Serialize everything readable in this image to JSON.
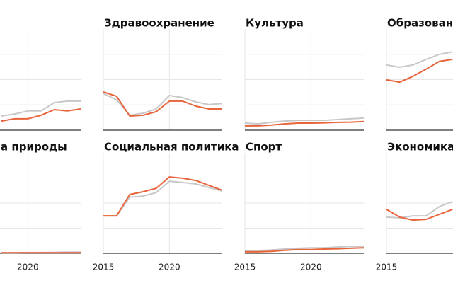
{
  "chart_data": [
    {
      "type": "line",
      "x": [
        2018,
        2019,
        2020,
        2021,
        2022,
        2023,
        2024
      ],
      "xlim": [
        2015,
        2024
      ],
      "xticks": [
        2020
      ],
      "ylim": [
        0,
        4
      ],
      "yticks": [
        1,
        2,
        3
      ],
      "grid": true,
      "series": [
        {
          "color": "#c8c8c8",
          "values": [
            0.56,
            0.64,
            0.76,
            0.76,
            1.09,
            1.15,
            1.15
          ]
        },
        {
          "color": "#e8643a",
          "values": [
            0.36,
            0.45,
            0.45,
            0.59,
            0.81,
            0.76,
            0.84
          ]
        }
      ]
    },
    {
      "type": "line",
      "title": "Здравоохранение",
      "x": [
        2015,
        2016,
        2017,
        2018,
        2019,
        2020,
        2021,
        2022,
        2023,
        2024
      ],
      "xlim": [
        2015,
        2024
      ],
      "xticks": [
        2015,
        2020
      ],
      "ylim": [
        0,
        4
      ],
      "yticks": [
        1,
        2,
        3
      ],
      "grid": true,
      "series": [
        {
          "color": "#c8c8c8",
          "values": [
            1.45,
            1.2,
            0.59,
            0.67,
            0.84,
            1.37,
            1.29,
            1.12,
            1.01,
            1.06
          ]
        },
        {
          "color": "#e8643a",
          "values": [
            1.51,
            1.34,
            0.56,
            0.59,
            0.73,
            1.15,
            1.15,
            0.95,
            0.84,
            0.84
          ]
        }
      ]
    },
    {
      "type": "line",
      "title": "Культура",
      "x": [
        2015,
        2016,
        2017,
        2018,
        2019,
        2020,
        2021,
        2022,
        2023,
        2024
      ],
      "xlim": [
        2015,
        2024
      ],
      "xticks": [
        2015,
        2020
      ],
      "ylim": [
        0,
        4
      ],
      "yticks": [
        1,
        2,
        3
      ],
      "grid": true,
      "series": [
        {
          "color": "#c8c8c8",
          "values": [
            0.28,
            0.25,
            0.31,
            0.36,
            0.39,
            0.39,
            0.39,
            0.42,
            0.45,
            0.48
          ]
        },
        {
          "color": "#e8643a",
          "values": [
            0.17,
            0.17,
            0.2,
            0.25,
            0.28,
            0.28,
            0.29,
            0.31,
            0.32,
            0.34
          ]
        }
      ]
    },
    {
      "type": "line",
      "title": "Образован",
      "x": [
        2015,
        2016,
        2017,
        2018,
        2019,
        2020
      ],
      "xlim": [
        2015,
        2024
      ],
      "xticks": [
        2015
      ],
      "ylim": [
        0,
        4
      ],
      "yticks": [
        1,
        2,
        3
      ],
      "grid": true,
      "series": [
        {
          "color": "#c8c8c8",
          "values": [
            2.58,
            2.49,
            2.58,
            2.8,
            3.0,
            3.1
          ]
        },
        {
          "color": "#e8643a",
          "values": [
            1.99,
            1.9,
            2.13,
            2.41,
            2.72,
            2.8
          ]
        }
      ]
    },
    {
      "type": "line",
      "title": "а природы",
      "x": [
        2018,
        2019,
        2020,
        2021,
        2022,
        2023,
        2024
      ],
      "xlim": [
        2015,
        2024
      ],
      "xticks": [
        2020
      ],
      "ylim": [
        0,
        4
      ],
      "yticks": [
        1,
        2,
        3
      ],
      "grid": true,
      "series": [
        {
          "color": "#c8c8c8",
          "values": [
            0.02,
            0.02,
            0.03,
            0.03,
            0.04,
            0.05,
            0.05
          ]
        },
        {
          "color": "#e8643a",
          "values": [
            0.02,
            0.02,
            0.02,
            0.02,
            0.02,
            0.02,
            0.02
          ]
        }
      ]
    },
    {
      "type": "line",
      "title": "Социальная политика",
      "x": [
        2015,
        2016,
        2017,
        2018,
        2019,
        2020,
        2021,
        2022,
        2023,
        2024
      ],
      "xlim": [
        2015,
        2024
      ],
      "xticks": [
        2015,
        2020
      ],
      "ylim": [
        0,
        4
      ],
      "yticks": [
        1,
        2,
        3
      ],
      "grid": true,
      "series": [
        {
          "color": "#c8c8c8",
          "values": [
            1.49,
            1.49,
            2.23,
            2.28,
            2.42,
            2.87,
            2.82,
            2.76,
            2.62,
            2.48
          ]
        },
        {
          "color": "#e8643a",
          "values": [
            1.49,
            1.49,
            2.34,
            2.45,
            2.59,
            3.04,
            2.99,
            2.9,
            2.7,
            2.51
          ]
        }
      ]
    },
    {
      "type": "line",
      "title": "Спорт",
      "x": [
        2015,
        2016,
        2017,
        2018,
        2019,
        2020,
        2021,
        2022,
        2023,
        2024
      ],
      "xlim": [
        2015,
        2024
      ],
      "xticks": [
        2015,
        2020
      ],
      "ylim": [
        0,
        4
      ],
      "yticks": [
        1,
        2,
        3
      ],
      "grid": true,
      "series": [
        {
          "color": "#c8c8c8",
          "values": [
            0.11,
            0.11,
            0.13,
            0.17,
            0.2,
            0.22,
            0.22,
            0.25,
            0.27,
            0.28
          ]
        },
        {
          "color": "#e8643a",
          "values": [
            0.06,
            0.06,
            0.08,
            0.12,
            0.15,
            0.15,
            0.17,
            0.18,
            0.2,
            0.22
          ]
        }
      ]
    },
    {
      "type": "line",
      "title": "Экономика",
      "x": [
        2015,
        2016,
        2017,
        2018,
        2019,
        2020
      ],
      "xlim": [
        2015,
        2024
      ],
      "xticks": [
        2015
      ],
      "ylim": [
        0,
        4
      ],
      "yticks": [
        1,
        2,
        3
      ],
      "grid": true,
      "series": [
        {
          "color": "#c8c8c8",
          "values": [
            1.44,
            1.41,
            1.49,
            1.49,
            1.86,
            2.06
          ]
        },
        {
          "color": "#e8643a",
          "values": [
            1.75,
            1.44,
            1.32,
            1.35,
            1.55,
            1.75
          ]
        }
      ]
    }
  ]
}
